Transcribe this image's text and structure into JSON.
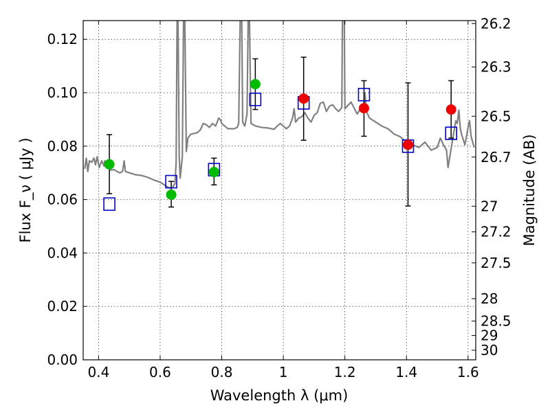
{
  "chart_data": {
    "type": "scatter",
    "xlabel": "Wavelength  λ (μm)",
    "ylabel": "Flux  F_ν  ( μJy )",
    "y2label": "Magnitude (AB)",
    "xlim": [
      0.35,
      1.625
    ],
    "ylim": [
      0.0,
      0.127
    ],
    "grid": true,
    "xticks": [
      {
        "value": 0.4,
        "label": "0.4"
      },
      {
        "value": 0.6,
        "label": "0.6"
      },
      {
        "value": 0.8,
        "label": "0.8"
      },
      {
        "value": 1.0,
        "label": "1"
      },
      {
        "value": 1.2,
        "label": "1.2"
      },
      {
        "value": 1.4,
        "label": "1.4"
      },
      {
        "value": 1.6,
        "label": "1.6"
      }
    ],
    "yticks": [
      {
        "value": 0.0,
        "label": "0.00"
      },
      {
        "value": 0.02,
        "label": "0.02"
      },
      {
        "value": 0.04,
        "label": "0.04"
      },
      {
        "value": 0.06,
        "label": "0.06"
      },
      {
        "value": 0.08,
        "label": "0.08"
      },
      {
        "value": 0.1,
        "label": "0.10"
      },
      {
        "value": 0.12,
        "label": "0.12"
      }
    ],
    "y2ticks": [
      {
        "flux": 0.1259,
        "label": "26.2"
      },
      {
        "flux": 0.1096,
        "label": "26.3"
      },
      {
        "flux": 0.0912,
        "label": "26.5"
      },
      {
        "flux": 0.0759,
        "label": "26.7"
      },
      {
        "flux": 0.0575,
        "label": "27"
      },
      {
        "flux": 0.0479,
        "label": "27.2"
      },
      {
        "flux": 0.0363,
        "label": "27.5"
      },
      {
        "flux": 0.0229,
        "label": "28"
      },
      {
        "flux": 0.0145,
        "label": "28.5"
      },
      {
        "flux": 0.0091,
        "label": "29"
      },
      {
        "flux": 0.0036,
        "label": "30"
      }
    ],
    "series": [
      {
        "marker": "line",
        "color": "#808080",
        "points": [
          [
            0.355,
            0.0715
          ],
          [
            0.36,
            0.0755
          ],
          [
            0.365,
            0.0705
          ],
          [
            0.37,
            0.0745
          ],
          [
            0.378,
            0.074
          ],
          [
            0.385,
            0.0755
          ],
          [
            0.39,
            0.073
          ],
          [
            0.395,
            0.076
          ],
          [
            0.402,
            0.072
          ],
          [
            0.41,
            0.0745
          ],
          [
            0.418,
            0.0725
          ],
          [
            0.42,
            0.0745
          ],
          [
            0.425,
            0.0728
          ],
          [
            0.44,
            0.071
          ],
          [
            0.45,
            0.0712
          ],
          [
            0.46,
            0.0705
          ],
          [
            0.47,
            0.07
          ],
          [
            0.478,
            0.0705
          ],
          [
            0.483,
            0.0745
          ],
          [
            0.487,
            0.0705
          ],
          [
            0.5,
            0.07
          ],
          [
            0.52,
            0.0693
          ],
          [
            0.54,
            0.069
          ],
          [
            0.56,
            0.0683
          ],
          [
            0.58,
            0.0673
          ],
          [
            0.6,
            0.0665
          ],
          [
            0.62,
            0.065
          ],
          [
            0.63,
            0.0643
          ],
          [
            0.64,
            0.0645
          ],
          [
            0.648,
            0.066
          ],
          [
            0.652,
            0.074
          ],
          [
            0.655,
            0.128
          ],
          [
            0.658,
            0.128
          ],
          [
            0.662,
            0.076
          ],
          [
            0.665,
            0.068
          ],
          [
            0.672,
            0.076
          ],
          [
            0.676,
            0.128
          ],
          [
            0.68,
            0.128
          ],
          [
            0.685,
            0.078
          ],
          [
            0.69,
            0.083
          ],
          [
            0.7,
            0.0845
          ],
          [
            0.72,
            0.085
          ],
          [
            0.73,
            0.086
          ],
          [
            0.74,
            0.0885
          ],
          [
            0.75,
            0.088
          ],
          [
            0.76,
            0.087
          ],
          [
            0.77,
            0.0885
          ],
          [
            0.78,
            0.0875
          ],
          [
            0.79,
            0.0905
          ],
          [
            0.795,
            0.09
          ],
          [
            0.8,
            0.0885
          ],
          [
            0.81,
            0.0875
          ],
          [
            0.82,
            0.0865
          ],
          [
            0.84,
            0.0865
          ],
          [
            0.85,
            0.087
          ],
          [
            0.855,
            0.0885
          ],
          [
            0.86,
            0.128
          ],
          [
            0.865,
            0.128
          ],
          [
            0.868,
            0.089
          ],
          [
            0.875,
            0.0875
          ],
          [
            0.882,
            0.092
          ],
          [
            0.886,
            0.128
          ],
          [
            0.89,
            0.128
          ],
          [
            0.895,
            0.0885
          ],
          [
            0.91,
            0.0875
          ],
          [
            0.93,
            0.087
          ],
          [
            0.95,
            0.0868
          ],
          [
            0.97,
            0.0863
          ],
          [
            0.98,
            0.0875
          ],
          [
            0.99,
            0.0885
          ],
          [
            1.0,
            0.0875
          ],
          [
            1.01,
            0.0865
          ],
          [
            1.02,
            0.0875
          ],
          [
            1.03,
            0.0905
          ],
          [
            1.035,
            0.094
          ],
          [
            1.04,
            0.089
          ],
          [
            1.05,
            0.0905
          ],
          [
            1.06,
            0.091
          ],
          [
            1.07,
            0.0925
          ],
          [
            1.08,
            0.0905
          ],
          [
            1.09,
            0.089
          ],
          [
            1.1,
            0.0915
          ],
          [
            1.11,
            0.0925
          ],
          [
            1.12,
            0.096
          ],
          [
            1.13,
            0.0965
          ],
          [
            1.14,
            0.093
          ],
          [
            1.15,
            0.095
          ],
          [
            1.16,
            0.0955
          ],
          [
            1.17,
            0.094
          ],
          [
            1.18,
            0.093
          ],
          [
            1.19,
            0.0945
          ],
          [
            1.192,
            0.128
          ],
          [
            1.198,
            0.128
          ],
          [
            1.2,
            0.094
          ],
          [
            1.22,
            0.0965
          ],
          [
            1.24,
            0.092
          ],
          [
            1.25,
            0.094
          ],
          [
            1.26,
            0.093
          ],
          [
            1.265,
            0.1
          ],
          [
            1.27,
            0.093
          ],
          [
            1.28,
            0.0905
          ],
          [
            1.3,
            0.089
          ],
          [
            1.32,
            0.0875
          ],
          [
            1.34,
            0.0865
          ],
          [
            1.36,
            0.0845
          ],
          [
            1.38,
            0.0835
          ],
          [
            1.4,
            0.0815
          ],
          [
            1.42,
            0.0805
          ],
          [
            1.44,
            0.0795
          ],
          [
            1.46,
            0.0815
          ],
          [
            1.48,
            0.0785
          ],
          [
            1.5,
            0.0795
          ],
          [
            1.51,
            0.083
          ],
          [
            1.52,
            0.0805
          ],
          [
            1.53,
            0.0785
          ],
          [
            1.535,
            0.072
          ],
          [
            1.54,
            0.0755
          ],
          [
            1.55,
            0.0825
          ],
          [
            1.56,
            0.0895
          ],
          [
            1.565,
            0.0885
          ],
          [
            1.57,
            0.0935
          ],
          [
            1.575,
            0.0865
          ],
          [
            1.58,
            0.084
          ],
          [
            1.59,
            0.0805
          ],
          [
            1.6,
            0.087
          ],
          [
            1.605,
            0.0895
          ],
          [
            1.61,
            0.0835
          ],
          [
            1.62,
            0.0795
          ]
        ]
      },
      {
        "marker": "open-square",
        "color": "#0000cc",
        "points": [
          [
            0.435,
            0.0583
          ],
          [
            0.636,
            0.0667
          ],
          [
            0.775,
            0.0712
          ],
          [
            0.909,
            0.0975
          ],
          [
            1.066,
            0.0962
          ],
          [
            1.262,
            0.0993
          ],
          [
            1.405,
            0.08
          ],
          [
            1.545,
            0.0848
          ]
        ]
      },
      {
        "marker": "filled-circle",
        "color": "#00bb00",
        "points": [
          [
            0.435,
            0.0732
          ],
          [
            0.636,
            0.0618
          ],
          [
            0.775,
            0.0703
          ],
          [
            0.909,
            0.1032
          ]
        ]
      },
      {
        "marker": "filled-circle",
        "color": "#ee0000",
        "points": [
          [
            1.066,
            0.0978
          ],
          [
            1.262,
            0.0942
          ],
          [
            1.405,
            0.0805
          ],
          [
            1.545,
            0.0937
          ]
        ]
      }
    ],
    "errorbars": [
      {
        "x": 0.435,
        "low": 0.0622,
        "high": 0.0843
      },
      {
        "x": 0.636,
        "low": 0.0572,
        "high": 0.0668
      },
      {
        "x": 0.775,
        "low": 0.0655,
        "high": 0.0755
      },
      {
        "x": 0.909,
        "low": 0.0937,
        "high": 0.1127
      },
      {
        "x": 1.066,
        "low": 0.0822,
        "high": 0.1133
      },
      {
        "x": 1.262,
        "low": 0.0837,
        "high": 0.1045
      },
      {
        "x": 1.405,
        "low": 0.0576,
        "high": 0.1037
      },
      {
        "x": 1.545,
        "low": 0.083,
        "high": 0.1045
      }
    ]
  }
}
